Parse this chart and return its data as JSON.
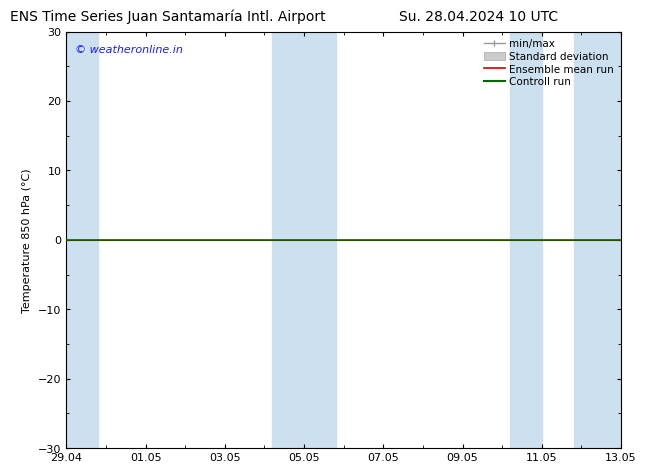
{
  "title_left": "ENS Time Series Juan Santamaría Intl. Airport",
  "title_right": "Su. 28.04.2024 10 UTC",
  "ylabel": "Temperature 850 hPa (°C)",
  "ylim": [
    -30,
    30
  ],
  "yticks": [
    -30,
    -20,
    -10,
    0,
    10,
    20,
    30
  ],
  "xlim_start": 0,
  "xlim_end": 14,
  "xtick_labels": [
    "29.04",
    "01.05",
    "03.05",
    "05.05",
    "07.05",
    "09.05",
    "11.05",
    "13.05"
  ],
  "xtick_positions": [
    0,
    2,
    4,
    6,
    8,
    10,
    12,
    14
  ],
  "blue_band_positions": [
    [
      -0.1,
      0.8
    ],
    [
      5.2,
      6.8
    ],
    [
      11.2,
      12.0
    ],
    [
      12.8,
      14.1
    ]
  ],
  "blue_band_color": "#cce0f0",
  "control_run_y": 0,
  "control_run_color": "#006600",
  "ensemble_mean_color": "#cc0000",
  "minmax_color": "#999999",
  "std_color": "#cccccc",
  "watermark_text": "© weatheronline.in",
  "watermark_color": "#1a1aff",
  "background_color": "#ffffff",
  "legend_entries": [
    "min/max",
    "Standard deviation",
    "Ensemble mean run",
    "Controll run"
  ],
  "legend_colors": [
    "#999999",
    "#cccccc",
    "#cc0000",
    "#006600"
  ],
  "title_fontsize": 10,
  "axis_fontsize": 8,
  "tick_fontsize": 8,
  "legend_fontsize": 7.5,
  "watermark_fontsize": 8
}
